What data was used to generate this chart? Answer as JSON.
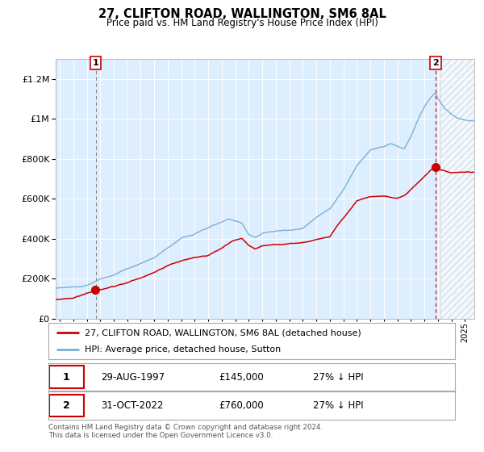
{
  "title": "27, CLIFTON ROAD, WALLINGTON, SM6 8AL",
  "subtitle": "Price paid vs. HM Land Registry's House Price Index (HPI)",
  "legend_line1": "27, CLIFTON ROAD, WALLINGTON, SM6 8AL (detached house)",
  "legend_line2": "HPI: Average price, detached house, Sutton",
  "sale1_date": "29-AUG-1997",
  "sale1_price": 145000,
  "sale1_pct": "27% ↓ HPI",
  "sale2_date": "31-OCT-2022",
  "sale2_price": 760000,
  "sale2_pct": "27% ↓ HPI",
  "footer": "Contains HM Land Registry data © Crown copyright and database right 2024.\nThis data is licensed under the Open Government Licence v3.0.",
  "hpi_color": "#7bafd4",
  "price_color": "#cc0000",
  "bg_color": "#ddeeff",
  "grid_color": "#ffffff",
  "ylim": [
    0,
    1300000
  ],
  "yticks": [
    0,
    200000,
    400000,
    600000,
    800000,
    1000000,
    1200000
  ],
  "xlim_start": 1994.7,
  "xlim_end": 2025.7,
  "sale1_year": 1997.66,
  "sale2_year": 2022.83,
  "marker_size": 7,
  "vline1_color": "#aaaaaa",
  "vline2_color": "#cc0000",
  "hatch_start": 2023.2
}
